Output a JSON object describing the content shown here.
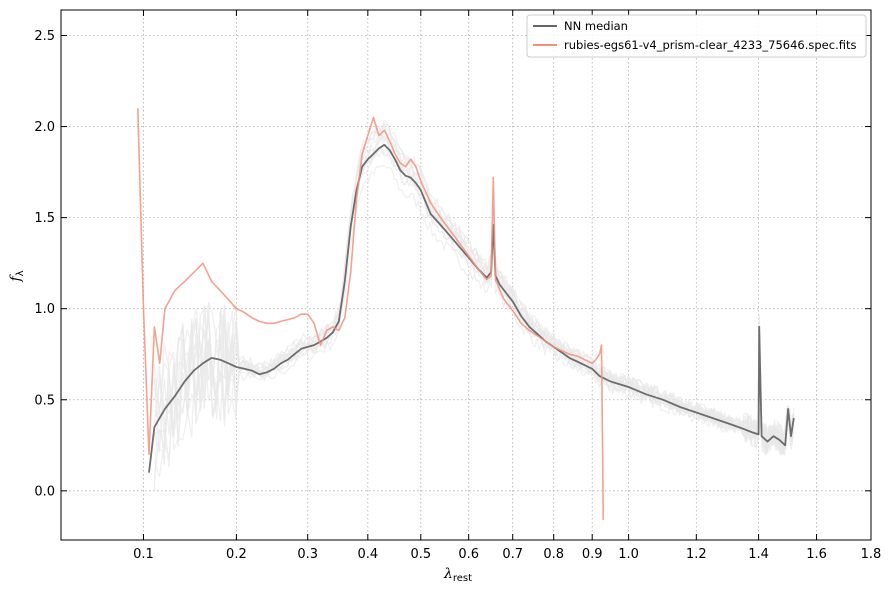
{
  "chart_data": {
    "type": "line",
    "xlabel": "λ",
    "xlabel_sub": "rest",
    "ylabel": "f",
    "ylabel_sub": "λ",
    "x_scale": "sqrt",
    "xlim": [
      0.04,
      1.8
    ],
    "ylim": [
      -0.27,
      2.64
    ],
    "xticks": [
      0.1,
      0.2,
      0.3,
      0.4,
      0.5,
      0.6,
      0.7,
      0.8,
      0.9,
      1.0,
      1.2,
      1.4,
      1.6,
      1.8
    ],
    "xtick_labels": [
      "0.1",
      "0.2",
      "0.3",
      "0.4",
      "0.5",
      "0.6",
      "0.7",
      "0.8",
      "0.9",
      "1.0",
      "1.2",
      "1.4",
      "1.6",
      "1.8"
    ],
    "yticks": [
      0.0,
      0.5,
      1.0,
      1.5,
      2.0,
      2.5
    ],
    "ytick_labels": [
      "0.0",
      "0.5",
      "1.0",
      "1.5",
      "2.0",
      "2.5"
    ],
    "grid": true,
    "grid_style": "dotted",
    "legend_position": "top-right",
    "colors": {
      "median": "#666666",
      "spectrum": "#f4907a",
      "samples": "#e8e8e8"
    },
    "series": [
      {
        "name": "NN median",
        "color": "#666666",
        "x": [
          0.105,
          0.11,
          0.12,
          0.13,
          0.14,
          0.15,
          0.16,
          0.17,
          0.18,
          0.19,
          0.2,
          0.21,
          0.22,
          0.23,
          0.24,
          0.25,
          0.26,
          0.27,
          0.28,
          0.29,
          0.3,
          0.31,
          0.32,
          0.33,
          0.34,
          0.35,
          0.36,
          0.37,
          0.38,
          0.39,
          0.4,
          0.41,
          0.42,
          0.43,
          0.44,
          0.45,
          0.46,
          0.47,
          0.48,
          0.49,
          0.5,
          0.52,
          0.54,
          0.56,
          0.58,
          0.6,
          0.62,
          0.64,
          0.65,
          0.655,
          0.66,
          0.67,
          0.68,
          0.7,
          0.72,
          0.74,
          0.76,
          0.78,
          0.8,
          0.82,
          0.84,
          0.86,
          0.88,
          0.9,
          0.92,
          0.95,
          1.0,
          1.05,
          1.1,
          1.15,
          1.2,
          1.25,
          1.3,
          1.35,
          1.38,
          1.4,
          1.402,
          1.41,
          1.43,
          1.45,
          1.47,
          1.49,
          1.5,
          1.51,
          1.52
        ],
        "y": [
          0.1,
          0.35,
          0.45,
          0.52,
          0.6,
          0.66,
          0.7,
          0.73,
          0.72,
          0.7,
          0.68,
          0.67,
          0.66,
          0.64,
          0.65,
          0.67,
          0.7,
          0.72,
          0.75,
          0.78,
          0.79,
          0.8,
          0.82,
          0.84,
          0.87,
          0.93,
          1.15,
          1.45,
          1.65,
          1.78,
          1.82,
          1.85,
          1.88,
          1.9,
          1.87,
          1.82,
          1.76,
          1.73,
          1.72,
          1.69,
          1.65,
          1.52,
          1.46,
          1.4,
          1.34,
          1.28,
          1.22,
          1.17,
          1.2,
          1.46,
          1.18,
          1.13,
          1.1,
          1.04,
          0.96,
          0.9,
          0.86,
          0.82,
          0.79,
          0.76,
          0.73,
          0.71,
          0.69,
          0.67,
          0.63,
          0.6,
          0.57,
          0.53,
          0.5,
          0.46,
          0.43,
          0.4,
          0.37,
          0.34,
          0.32,
          0.31,
          0.9,
          0.3,
          0.27,
          0.3,
          0.28,
          0.25,
          0.45,
          0.3,
          0.4
        ]
      },
      {
        "name": "rubies-egs61-v4_prism-clear_4233_75646.spec.fits",
        "color": "#f4907a",
        "x": [
          0.095,
          0.1,
          0.105,
          0.11,
          0.115,
          0.12,
          0.13,
          0.14,
          0.15,
          0.16,
          0.17,
          0.18,
          0.19,
          0.2,
          0.21,
          0.22,
          0.23,
          0.24,
          0.25,
          0.26,
          0.27,
          0.28,
          0.29,
          0.3,
          0.31,
          0.32,
          0.33,
          0.34,
          0.35,
          0.36,
          0.37,
          0.38,
          0.39,
          0.4,
          0.41,
          0.42,
          0.43,
          0.44,
          0.45,
          0.46,
          0.47,
          0.48,
          0.49,
          0.5,
          0.52,
          0.54,
          0.56,
          0.58,
          0.6,
          0.62,
          0.64,
          0.65,
          0.655,
          0.66,
          0.67,
          0.68,
          0.7,
          0.72,
          0.74,
          0.76,
          0.78,
          0.8,
          0.82,
          0.84,
          0.86,
          0.88,
          0.9,
          0.91,
          0.92,
          0.925,
          0.93
        ],
        "y": [
          2.1,
          1.0,
          0.2,
          0.9,
          0.7,
          1.0,
          1.1,
          1.15,
          1.2,
          1.25,
          1.15,
          1.1,
          1.05,
          1.0,
          0.98,
          0.95,
          0.93,
          0.92,
          0.92,
          0.93,
          0.94,
          0.95,
          0.97,
          0.97,
          0.92,
          0.8,
          0.88,
          0.9,
          0.88,
          0.95,
          1.2,
          1.6,
          1.85,
          1.95,
          2.05,
          1.95,
          1.98,
          1.92,
          1.85,
          1.8,
          1.78,
          1.82,
          1.78,
          1.7,
          1.58,
          1.5,
          1.43,
          1.36,
          1.29,
          1.22,
          1.16,
          1.18,
          1.72,
          1.16,
          1.1,
          1.05,
          0.99,
          0.92,
          0.88,
          0.85,
          0.82,
          0.79,
          0.77,
          0.75,
          0.74,
          0.72,
          0.7,
          0.72,
          0.75,
          0.8,
          -0.16
        ]
      }
    ]
  }
}
